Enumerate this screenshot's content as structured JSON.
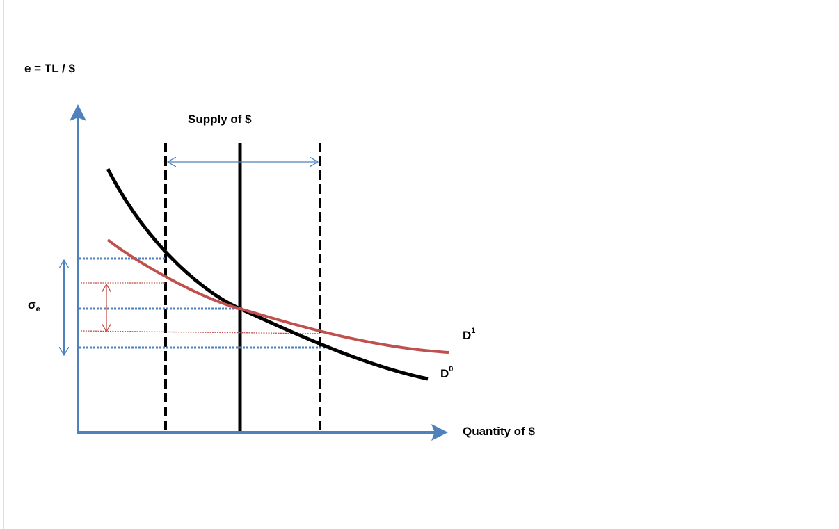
{
  "y_axis_label": "e = TL / $",
  "x_axis_label": "Quantity of $",
  "supply_label": "Supply of $",
  "sigma_label": {
    "symbol": "σ",
    "subscript": "e"
  },
  "curves": [
    {
      "label": "D",
      "superscript": "1"
    },
    {
      "label": "D",
      "superscript": "0"
    }
  ]
}
